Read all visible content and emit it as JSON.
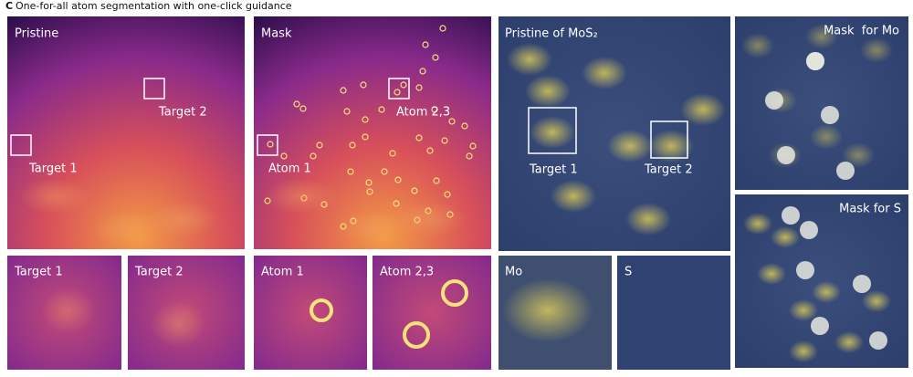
{
  "header": {
    "panel_label": "C",
    "title": "One-for-all atom segmentation with one-click guidance"
  },
  "panels": [
    {
      "label": "Pristine",
      "annotations": [
        "Target 2",
        "Target 1"
      ]
    },
    {
      "label": "Mask",
      "annotations": [
        "Atom 2,3",
        "Atom 1"
      ]
    },
    {
      "label": "Pristine of MoS₂",
      "annotations": [
        "Target 1",
        "Target 2"
      ]
    },
    {
      "label": "Mask  for Mo"
    },
    {
      "label": "Mask for S"
    }
  ],
  "crops": [
    "Target 1",
    "Target 2",
    "Atom 1",
    "Atom 2,3",
    "Mo",
    "S"
  ]
}
